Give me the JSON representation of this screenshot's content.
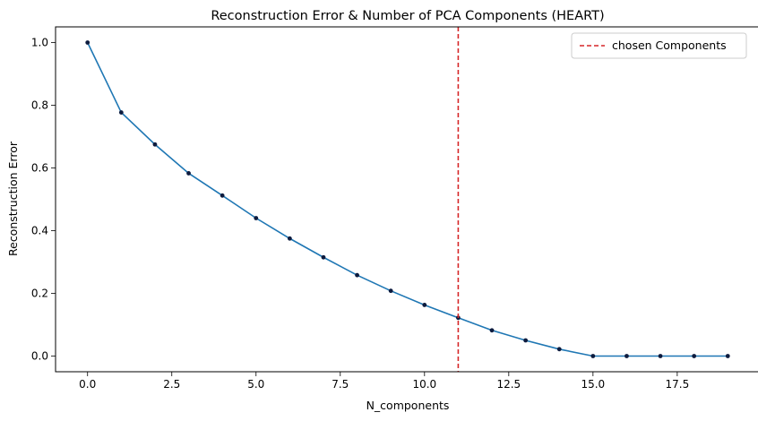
{
  "chart_data": {
    "type": "line",
    "title": "Reconstruction Error & Number of PCA Components (HEART)",
    "xlabel": "N_components",
    "ylabel": "Reconstruction Error",
    "xlim": [
      -0.95,
      19.95
    ],
    "ylim": [
      -0.05,
      1.05
    ],
    "xticks": [
      0.0,
      2.5,
      5.0,
      7.5,
      10.0,
      12.5,
      15.0,
      17.5
    ],
    "xtick_labels": [
      "0.0",
      "2.5",
      "5.0",
      "7.5",
      "10.0",
      "12.5",
      "15.0",
      "17.5"
    ],
    "yticks": [
      0.0,
      0.2,
      0.4,
      0.6,
      0.8,
      1.0
    ],
    "ytick_labels": [
      "0.0",
      "0.2",
      "0.4",
      "0.6",
      "0.8",
      "1.0"
    ],
    "grid": false,
    "legend_position": "top-right",
    "line_color": "#1f77b4",
    "marker_color": "#0d1b3e",
    "series": [
      {
        "x": [
          0,
          1,
          2,
          3,
          4,
          5,
          6,
          7,
          8,
          9,
          10,
          11,
          12,
          13,
          14,
          15,
          16,
          17,
          18,
          19
        ],
        "values": [
          1.0,
          0.777,
          0.675,
          0.583,
          0.512,
          0.44,
          0.375,
          0.315,
          0.258,
          0.208,
          0.163,
          0.122,
          0.082,
          0.05,
          0.022,
          0.0,
          0.0,
          0.0,
          0.0,
          0.0
        ]
      }
    ],
    "vline": {
      "x": 11,
      "label": "chosen Components",
      "color": "#d62728",
      "style": "dashed"
    }
  }
}
